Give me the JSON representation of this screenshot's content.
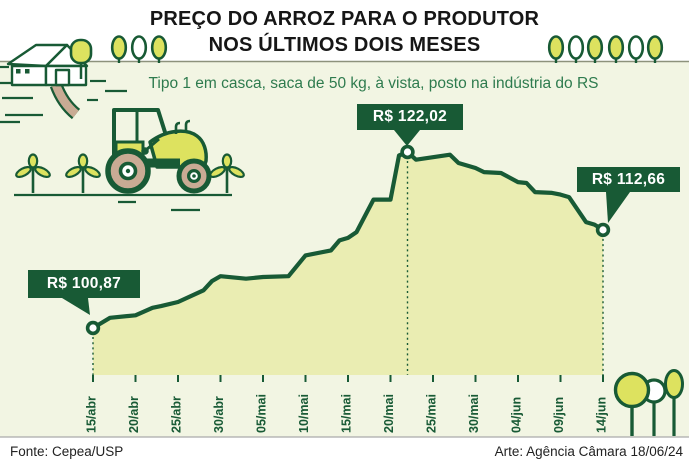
{
  "header": {
    "title_line1": "PREÇO DO ARROZ PARA O PRODUTOR",
    "title_line2": "NOS ÚLTIMOS DOIS MESES",
    "subtitle": "Tipo 1 em casca, saca de 50 kg, à vista, posto na indústria do RS"
  },
  "annotations": {
    "start": "R$ 100,87",
    "peak": "R$ 122,02",
    "end": "R$ 112,66"
  },
  "footer": {
    "source": "Fonte: Cepea/USP",
    "credit": "Arte: Agência Câmara 18/06/24"
  },
  "colors": {
    "dark_green": "#185a35",
    "subtitle_green": "#2e7b4e",
    "area_fill": "#eaedb2",
    "chart_bg": "#f2f5e3",
    "tree_fill": "#dde25f",
    "tan": "#c9ab94",
    "title_text": "#161616",
    "footer_text": "#222222",
    "separator": "#8d927c",
    "footer_line": "#aaaaaa"
  },
  "chart_data": {
    "type": "area",
    "title": "PREÇO DO ARROZ PARA O PRODUTOR NOS ÚLTIMOS DOIS MESES",
    "subtitle": "Tipo 1 em casca, saca de 50 kg, à vista, posto na indústria do RS",
    "unit": "R$ por saca de 50 kg",
    "ylim": [
      95.3,
      125
    ],
    "grid": false,
    "legend": false,
    "x_ticks": [
      {
        "day": 0,
        "label": "15/abr"
      },
      {
        "day": 5,
        "label": "20/abr"
      },
      {
        "day": 10,
        "label": "25/abr"
      },
      {
        "day": 15,
        "label": "30/abr"
      },
      {
        "day": 20,
        "label": "05/mai"
      },
      {
        "day": 25,
        "label": "10/mai"
      },
      {
        "day": 30,
        "label": "15/mai"
      },
      {
        "day": 35,
        "label": "20/mai"
      },
      {
        "day": 40,
        "label": "25/mai"
      },
      {
        "day": 45,
        "label": "30/mai"
      },
      {
        "day": 50,
        "label": "04/jun"
      },
      {
        "day": 55,
        "label": "09/jun"
      },
      {
        "day": 60,
        "label": "14/jun"
      }
    ],
    "points": [
      {
        "day": 0,
        "date": "15/abr",
        "value": 100.87
      },
      {
        "day": 2,
        "date": "17/abr",
        "value": 102.1
      },
      {
        "day": 5,
        "date": "20/abr",
        "value": 102.4
      },
      {
        "day": 7,
        "date": "22/abr",
        "value": 103.3
      },
      {
        "day": 8,
        "date": "23/abr",
        "value": 103.5
      },
      {
        "day": 10,
        "date": "25/abr",
        "value": 104.0
      },
      {
        "day": 13,
        "date": "28/abr",
        "value": 105.4
      },
      {
        "day": 14,
        "date": "29/abr",
        "value": 106.5
      },
      {
        "day": 15,
        "date": "30/abr",
        "value": 107.1
      },
      {
        "day": 18,
        "date": "03/mai",
        "value": 106.8
      },
      {
        "day": 20,
        "date": "05/mai",
        "value": 107.0
      },
      {
        "day": 23,
        "date": "08/mai",
        "value": 107.1
      },
      {
        "day": 25,
        "date": "10/mai",
        "value": 109.6
      },
      {
        "day": 28,
        "date": "13/mai",
        "value": 110.2
      },
      {
        "day": 29,
        "date": "14/mai",
        "value": 111.4
      },
      {
        "day": 30,
        "date": "15/mai",
        "value": 111.7
      },
      {
        "day": 31,
        "date": "16/mai",
        "value": 112.4
      },
      {
        "day": 33,
        "date": "18/mai",
        "value": 116.3
      },
      {
        "day": 35,
        "date": "20/mai",
        "value": 116.3
      },
      {
        "day": 36,
        "date": "21/mai",
        "value": 121.6
      },
      {
        "day": 37,
        "date": "22/mai",
        "value": 122.02
      },
      {
        "day": 38,
        "date": "23/mai",
        "value": 121.1
      },
      {
        "day": 40,
        "date": "25/mai",
        "value": 121.4
      },
      {
        "day": 42,
        "date": "27/mai",
        "value": 121.7
      },
      {
        "day": 43,
        "date": "28/mai",
        "value": 120.7
      },
      {
        "day": 45,
        "date": "30/mai",
        "value": 120.1
      },
      {
        "day": 46,
        "date": "31/mai",
        "value": 119.6
      },
      {
        "day": 48,
        "date": "02/jun",
        "value": 119.5
      },
      {
        "day": 50,
        "date": "04/jun",
        "value": 118.4
      },
      {
        "day": 51,
        "date": "05/jun",
        "value": 118.3
      },
      {
        "day": 52,
        "date": "06/jun",
        "value": 117.2
      },
      {
        "day": 54,
        "date": "08/jun",
        "value": 117.1
      },
      {
        "day": 55,
        "date": "09/jun",
        "value": 116.9
      },
      {
        "day": 56,
        "date": "10/jun",
        "value": 116.6
      },
      {
        "day": 58,
        "date": "12/jun",
        "value": 113.6
      },
      {
        "day": 59,
        "date": "13/jun",
        "value": 113.3
      },
      {
        "day": 60,
        "date": "14/jun",
        "value": 112.66
      }
    ],
    "annotated_points": [
      {
        "date": "15/abr",
        "day": 0,
        "value": 100.87,
        "label": "R$ 100,87"
      },
      {
        "date": "22/mai",
        "day": 37,
        "value": 122.02,
        "label": "R$ 122,02"
      },
      {
        "date": "14/jun",
        "day": 60,
        "value": 112.66,
        "label": "R$ 112,66"
      }
    ]
  }
}
